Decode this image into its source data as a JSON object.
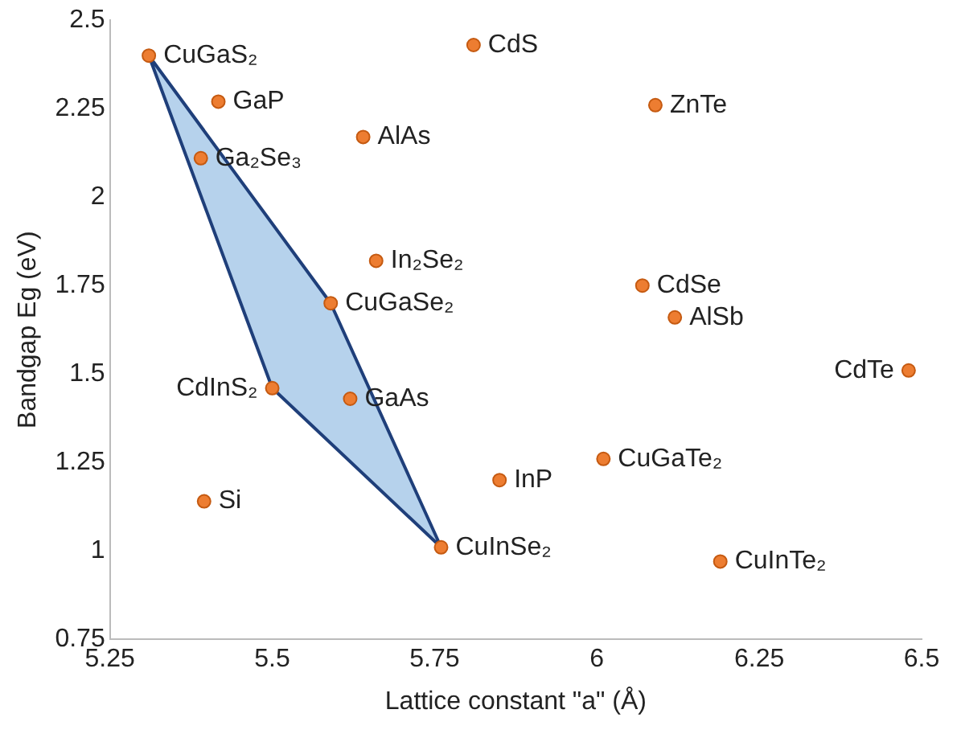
{
  "chart_data": {
    "type": "scatter",
    "xlabel": "Lattice constant \"a\" (Å)",
    "ylabel": "Bandgap Eg (eV)",
    "xlim": [
      5.25,
      6.5
    ],
    "xticks": [
      5.25,
      5.5,
      5.75,
      6,
      6.25,
      6.5
    ],
    "ylim": [
      0.75,
      2.5
    ],
    "yticks": [
      0.75,
      1,
      1.25,
      1.5,
      1.75,
      2,
      2.25,
      2.5
    ],
    "grid": false,
    "legend": false,
    "series": [
      {
        "type": "area",
        "marker": "none",
        "color": "#1f3f7a",
        "x": [
          5.31,
          5.59,
          5.76,
          5.5,
          5.31
        ],
        "values": [
          2.4,
          1.7,
          1.01,
          1.46,
          2.4
        ]
      },
      {
        "type": "scatter",
        "marker": "circle",
        "color": "#ed7d31",
        "x": [
          5.31,
          5.417,
          5.39,
          5.64,
          5.81,
          6.09,
          5.66,
          5.59,
          6.07,
          6.12,
          6.48,
          5.5,
          5.62,
          6.01,
          5.85,
          5.395,
          5.76,
          6.19
        ],
        "values": [
          2.4,
          2.27,
          2.11,
          2.17,
          2.43,
          2.26,
          1.82,
          1.7,
          1.75,
          1.66,
          1.51,
          1.46,
          1.43,
          1.26,
          1.2,
          1.14,
          1.01,
          0.97
        ]
      }
    ],
    "annotations": [
      {
        "text": "CuGaS₂",
        "x": 5.31,
        "y": 2.4
      },
      {
        "text": "GaP",
        "x": 5.417,
        "y": 2.27
      },
      {
        "text": "Ga₂Se₃",
        "x": 5.39,
        "y": 2.11
      },
      {
        "text": "AlAs",
        "x": 5.64,
        "y": 2.17
      },
      {
        "text": "CdS",
        "x": 5.81,
        "y": 2.43
      },
      {
        "text": "ZnTe",
        "x": 6.09,
        "y": 2.26
      },
      {
        "text": "In₂Se₂",
        "x": 5.66,
        "y": 1.82
      },
      {
        "text": "CuGaSe₂",
        "x": 5.59,
        "y": 1.7
      },
      {
        "text": "CdSe",
        "x": 6.07,
        "y": 1.75
      },
      {
        "text": "AlSb",
        "x": 6.12,
        "y": 1.66
      },
      {
        "text": "CdTe",
        "x": 6.48,
        "y": 1.51
      },
      {
        "text": "CdInS₂",
        "x": 5.5,
        "y": 1.46
      },
      {
        "text": "GaAs",
        "x": 5.62,
        "y": 1.43
      },
      {
        "text": "CuGaTe₂",
        "x": 6.01,
        "y": 1.26
      },
      {
        "text": "InP",
        "x": 5.85,
        "y": 1.2
      },
      {
        "text": "Si",
        "x": 5.395,
        "y": 1.14
      },
      {
        "text": "CuInSe₂",
        "x": 5.76,
        "y": 1.01
      },
      {
        "text": "CuInTe₂",
        "x": 6.19,
        "y": 0.97
      }
    ]
  }
}
